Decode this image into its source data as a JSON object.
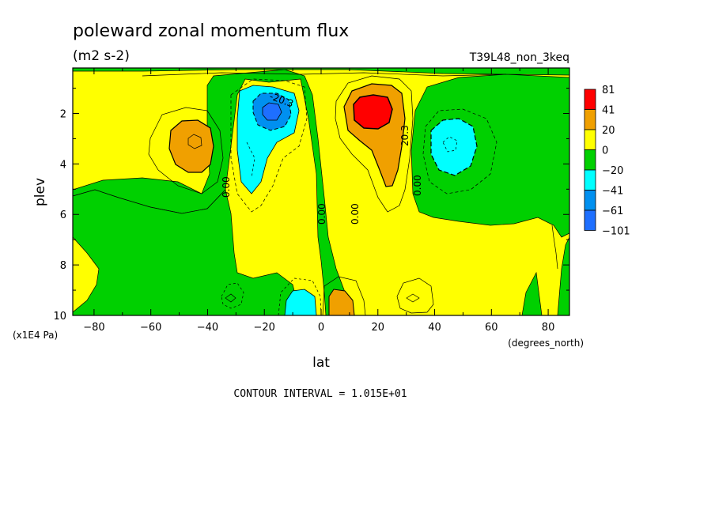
{
  "chart_data": {
    "type": "heatmap",
    "title": "poleward zonal momentum flux",
    "units": "(m2 s-2)",
    "run_label": "T39L48_non_3keq",
    "xlabel": "lat",
    "xunits": "(degrees_north)",
    "ylabel": "plev",
    "yunits": "(x1E4 Pa)",
    "x_ticks": [
      -80,
      -60,
      -40,
      -20,
      0,
      20,
      40,
      60,
      80
    ],
    "y_ticks": [
      2,
      4,
      6,
      8,
      10
    ],
    "xlim": [
      -87.5,
      87.5
    ],
    "ylim": [
      10,
      0.2
    ],
    "contour_interval_text": "CONTOUR INTERVAL = 1.015E+01",
    "colorbar": {
      "levels": [
        "81",
        "41",
        "20",
        "0",
        "−20",
        "−41",
        "−61",
        "−101"
      ],
      "colors": [
        "#ff0000",
        "#f0a000",
        "#ffff00",
        "#00d000",
        "#00ffff",
        "#0090f0",
        "#1e6fff"
      ]
    },
    "contour_labels": [
      "-20.3",
      "0.00",
      "0.00",
      "0.00",
      "20.3",
      "0.00"
    ],
    "features": [
      {
        "name": "SH subtropical jet max",
        "lat": -47,
        "plev": 3.0,
        "value": 30
      },
      {
        "name": "SH tropical min",
        "lat": -18,
        "plev": 1.8,
        "value": -55
      },
      {
        "name": "NH tropical max",
        "lat": 18,
        "plev": 1.9,
        "value": 60
      },
      {
        "name": "NH subtropical min",
        "lat": 45,
        "plev": 3.0,
        "value": -30
      },
      {
        "name": "SH surface min",
        "lat": -8,
        "plev": 9.5,
        "value": -30
      },
      {
        "name": "NH surface max",
        "lat": 7,
        "plev": 9.5,
        "value": 30
      }
    ]
  }
}
